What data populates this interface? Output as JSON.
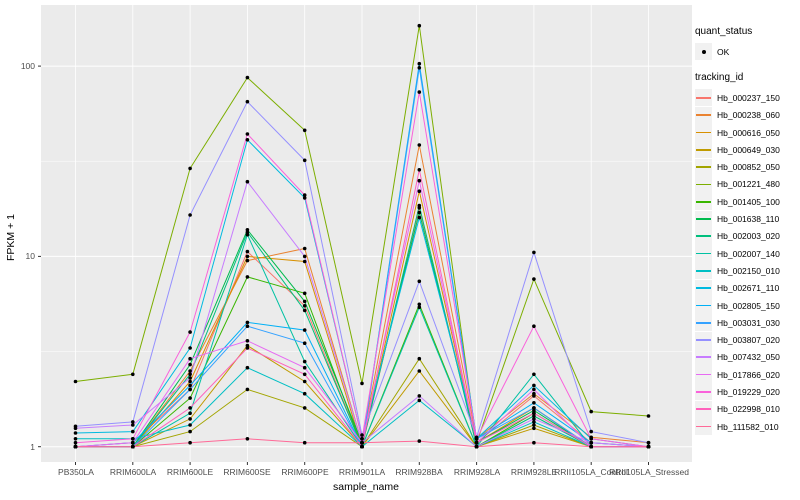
{
  "figure": {
    "y_axis": {
      "title": "FPKM + 1",
      "scale": "log10",
      "tick_labels": [
        "100",
        "10",
        "1"
      ],
      "tick_values": [
        100,
        10,
        1
      ]
    },
    "x_axis": {
      "title": "sample_name"
    },
    "legend": {
      "quant_status": {
        "title": "quant_status",
        "items": [
          {
            "label": "OK",
            "symbol": "point"
          }
        ]
      },
      "tracking_id": {
        "title": "tracking_id"
      }
    },
    "colors": {
      "panel_background": "#EBEBEB",
      "gridline": "#FFFFFF",
      "axis_text": "#4d4d4d",
      "tick_mark": "#333333",
      "point": "#000000",
      "legend_key_background": "#F1F1F1"
    }
  },
  "chart_data": {
    "type": "line",
    "title": "",
    "xlabel": "sample_name",
    "ylabel": "FPKM + 1",
    "yscale": "log10",
    "ylim": [
      0.84,
      207
    ],
    "y_major_ticks": [
      1,
      10,
      100
    ],
    "y_minor_ticks": [
      3.1623,
      31.623
    ],
    "grid": "white major and minor on gray panel",
    "legend_position": "right",
    "panel_bg": "#EBEBEB",
    "point_color": "#000000",
    "x": [
      "PB350LA",
      "RRIM600LA",
      "RRIM600LE",
      "RRIM600SE",
      "RRIM600PE",
      "RRIM901LA",
      "RRIM928BA",
      "RRIM928LA",
      "RRIM928LE",
      "RRII105LA_Control",
      "RRII105LA_Stressed"
    ],
    "series": [
      {
        "name": "Hb_000237_150",
        "color": "#F8766D",
        "quant_status": "OK",
        "values": [
          1.0,
          1.05,
          2.0,
          10.6,
          5.5,
          1.0,
          18.0,
          1.05,
          1.85,
          1.05,
          1.0
        ]
      },
      {
        "name": "Hb_000238_060",
        "color": "#EA8331",
        "quant_status": "OK",
        "values": [
          1.0,
          1.0,
          2.5,
          9.5,
          11.0,
          1.05,
          38.5,
          1.1,
          1.9,
          1.12,
          1.05
        ]
      },
      {
        "name": "Hb_000616_050",
        "color": "#D89000",
        "quant_status": "OK",
        "values": [
          1.0,
          1.0,
          2.2,
          10.0,
          9.4,
          1.0,
          22.0,
          1.05,
          1.6,
          1.0,
          1.0
        ]
      },
      {
        "name": "Hb_000649_030",
        "color": "#C09B00",
        "quant_status": "OK",
        "values": [
          1.0,
          1.0,
          1.4,
          3.4,
          2.2,
          1.0,
          2.5,
          1.0,
          1.25,
          1.0,
          1.0
        ]
      },
      {
        "name": "Hb_000852_050",
        "color": "#A3A500",
        "quant_status": "OK",
        "values": [
          1.0,
          1.0,
          1.2,
          2.0,
          1.6,
          1.0,
          2.9,
          1.0,
          1.3,
          1.0,
          1.0
        ]
      },
      {
        "name": "Hb_001221_480",
        "color": "#7CAE00",
        "quant_status": "OK",
        "values": [
          2.2,
          2.4,
          29.0,
          87.0,
          46.0,
          2.15,
          163.0,
          1.05,
          7.6,
          1.53,
          1.45
        ]
      },
      {
        "name": "Hb_001405_100",
        "color": "#39B600",
        "quant_status": "OK",
        "values": [
          1.0,
          1.0,
          1.8,
          7.8,
          6.4,
          1.0,
          5.6,
          1.0,
          1.5,
          1.0,
          1.0
        ]
      },
      {
        "name": "Hb_001638_110",
        "color": "#00BB4E",
        "quant_status": "OK",
        "values": [
          1.0,
          1.0,
          2.7,
          13.8,
          5.8,
          1.05,
          17.0,
          1.05,
          1.55,
          1.0,
          1.0
        ]
      },
      {
        "name": "Hb_002003_020",
        "color": "#00BF7D",
        "quant_status": "OK",
        "values": [
          1.0,
          1.0,
          2.4,
          13.4,
          5.2,
          1.0,
          18.5,
          1.0,
          1.45,
          1.0,
          1.0
        ]
      },
      {
        "name": "Hb_002007_140",
        "color": "#00C1A3",
        "quant_status": "OK",
        "values": [
          1.0,
          1.0,
          1.5,
          13.0,
          2.8,
          1.0,
          5.4,
          1.0,
          2.4,
          1.0,
          1.0
        ]
      },
      {
        "name": "Hb_002150_010",
        "color": "#00BFC4",
        "quant_status": "OK",
        "values": [
          1.1,
          1.1,
          1.3,
          2.6,
          1.9,
          1.0,
          1.75,
          1.0,
          1.35,
          1.0,
          1.0
        ]
      },
      {
        "name": "Hb_002671_110",
        "color": "#00BAE0",
        "quant_status": "OK",
        "values": [
          1.18,
          1.2,
          3.3,
          41.0,
          20.3,
          1.1,
          16.0,
          1.1,
          2.1,
          1.1,
          1.0
        ]
      },
      {
        "name": "Hb_002805_150",
        "color": "#00B0F6",
        "quant_status": "OK",
        "values": [
          1.0,
          1.05,
          2.1,
          4.5,
          4.1,
          1.0,
          103.0,
          1.1,
          1.7,
          1.05,
          1.0
        ]
      },
      {
        "name": "Hb_003031_030",
        "color": "#35A2FF",
        "quant_status": "OK",
        "values": [
          1.0,
          1.0,
          2.0,
          4.3,
          3.5,
          1.0,
          98.0,
          1.1,
          1.6,
          1.0,
          1.0
        ]
      },
      {
        "name": "Hb_003807_020",
        "color": "#9590FF",
        "quant_status": "OK",
        "values": [
          1.28,
          1.35,
          16.5,
          65.0,
          32.0,
          1.15,
          7.4,
          1.12,
          10.5,
          1.2,
          1.05
        ]
      },
      {
        "name": "Hb_007432_050",
        "color": "#C77CFF",
        "quant_status": "OK",
        "values": [
          1.25,
          1.3,
          2.3,
          24.7,
          10.0,
          1.05,
          1.85,
          1.0,
          1.4,
          1.05,
          1.0
        ]
      },
      {
        "name": "Hb_017866_020",
        "color": "#E76BF3",
        "quant_status": "OK",
        "values": [
          1.0,
          1.05,
          2.9,
          3.6,
          2.6,
          1.05,
          25.0,
          1.05,
          2.0,
          1.0,
          1.0
        ]
      },
      {
        "name": "Hb_019229_020",
        "color": "#FA62DB",
        "quant_status": "OK",
        "values": [
          1.05,
          1.1,
          4.0,
          44.0,
          21.0,
          1.1,
          73.0,
          1.1,
          4.3,
          1.1,
          1.0
        ]
      },
      {
        "name": "Hb_022998_010",
        "color": "#FF62BC",
        "quant_status": "OK",
        "values": [
          1.0,
          1.0,
          1.6,
          3.3,
          2.4,
          1.0,
          28.5,
          1.05,
          1.5,
          1.0,
          1.0
        ]
      },
      {
        "name": "Hb_111582_010",
        "color": "#FF6A98",
        "quant_status": "OK",
        "values": [
          1.0,
          1.0,
          1.05,
          1.1,
          1.05,
          1.05,
          1.07,
          1.0,
          1.05,
          1.0,
          1.0
        ]
      }
    ]
  }
}
